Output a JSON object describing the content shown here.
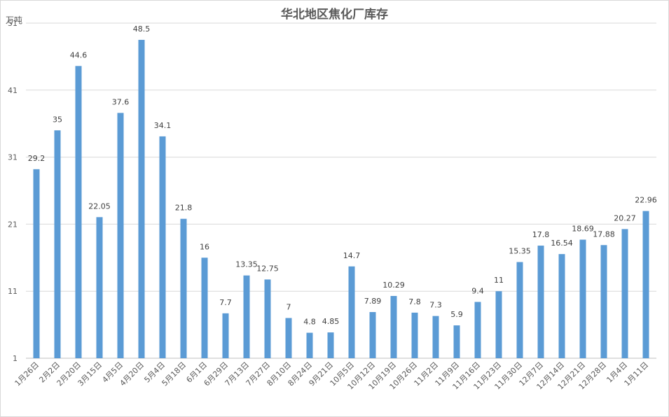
{
  "chart_data": {
    "type": "bar",
    "title": "华北地区焦化厂库存",
    "ylabel": "万吨",
    "ylim": [
      1,
      51
    ],
    "yticks": [
      1,
      11,
      21,
      31,
      41,
      51
    ],
    "grid": true,
    "bar_color": "#5b9bd5",
    "categories": [
      "1月26日",
      "2月2日",
      "2月20日",
      "3月15日",
      "4月5日",
      "4月20日",
      "5月4日",
      "5月18日",
      "6月1日",
      "6月29日",
      "7月13日",
      "7月27日",
      "8月10日",
      "8月24日",
      "9月21日",
      "10月5日",
      "10月12日",
      "10月19日",
      "10月26日",
      "11月2日",
      "11月9日",
      "11月16日",
      "11月23日",
      "11月30日",
      "12月7日",
      "12月14日",
      "12月21日",
      "12月28日",
      "1月4日",
      "1月11日"
    ],
    "values": [
      29.2,
      35,
      44.6,
      22.05,
      37.6,
      48.5,
      34.1,
      21.8,
      16,
      7.7,
      13.35,
      12.75,
      7,
      4.8,
      4.85,
      14.7,
      7.89,
      10.29,
      7.8,
      7.3,
      5.9,
      9.4,
      11,
      15.35,
      17.8,
      16.54,
      18.69,
      17.88,
      20.27,
      22.96
    ],
    "value_labels": [
      "29.2",
      "35",
      "44.6",
      "22.05",
      "37.6",
      "48.5",
      "34.1",
      "21.8",
      "16",
      "7.7",
      "13.35",
      "12.75",
      "7",
      "4.8",
      "4.85",
      "14.7",
      "7.89",
      "10.29",
      "7.8",
      "7.3",
      "5.9",
      "9.4",
      "11",
      "15.35",
      "17.8",
      "16.54",
      "18.69",
      "17.88",
      "20.27",
      "22.96"
    ]
  }
}
